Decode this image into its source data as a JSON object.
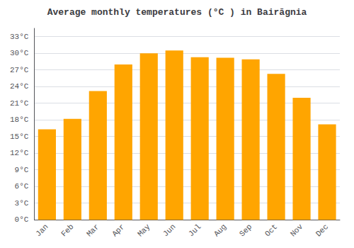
{
  "chart_data": {
    "type": "bar",
    "title": "Average monthly temperatures (°C ) in Bairāgnia",
    "categories": [
      "Jan",
      "Feb",
      "Mar",
      "Apr",
      "May",
      "Jun",
      "Jul",
      "Aug",
      "Sep",
      "Oct",
      "Nov",
      "Dec"
    ],
    "values": [
      16.3,
      18.2,
      23.2,
      28.0,
      30.0,
      30.5,
      29.3,
      29.2,
      28.9,
      26.3,
      22.0,
      17.2
    ],
    "color": "#FFA500",
    "ylim": [
      0,
      34.5
    ],
    "yticks": [
      {
        "value": 0,
        "label": "0°C"
      },
      {
        "value": 3,
        "label": "3°C"
      },
      {
        "value": 6,
        "label": "6°C"
      },
      {
        "value": 9,
        "label": "9°C"
      },
      {
        "value": 12,
        "label": "12°C"
      },
      {
        "value": 15,
        "label": "15°C"
      },
      {
        "value": 18,
        "label": "18°C"
      },
      {
        "value": 21,
        "label": "21°C"
      },
      {
        "value": 24,
        "label": "24°C"
      },
      {
        "value": 27,
        "label": "27°C"
      },
      {
        "value": 30,
        "label": "30°C"
      },
      {
        "value": 33,
        "label": "33°C"
      }
    ],
    "grid": true
  }
}
